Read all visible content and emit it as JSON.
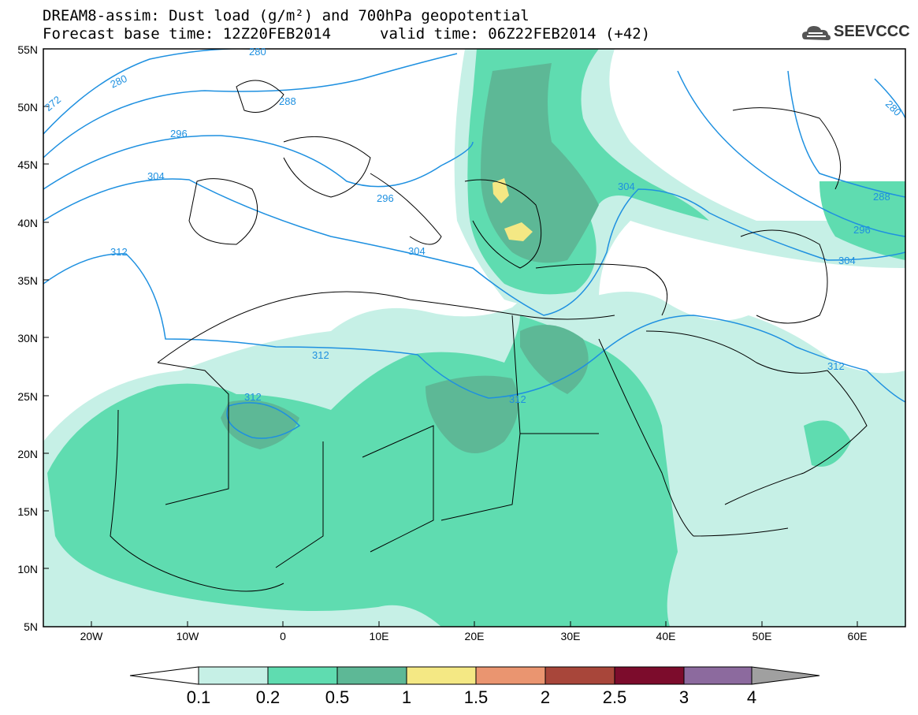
{
  "header": {
    "title_line1": "DREAM8-assim: Dust load (g/m²) and 700hPa geopotential",
    "title_line2": "Forecast base time: 12Z20FEB2014",
    "valid_time": "valid time: 06Z22FEB2014 (+42)",
    "logo_text": "SEEVCCC"
  },
  "axes": {
    "latitudes": [
      "55N",
      "50N",
      "45N",
      "40N",
      "35N",
      "30N",
      "25N",
      "20N",
      "15N",
      "10N",
      "5N"
    ],
    "longitudes": [
      "20W",
      "10W",
      "0",
      "10E",
      "20E",
      "30E",
      "40E",
      "50E",
      "60E"
    ]
  },
  "contour_labels": [
    "280",
    "272",
    "280",
    "288",
    "296",
    "304",
    "296",
    "312",
    "304",
    "312",
    "312",
    "312",
    "304",
    "288",
    "296",
    "304",
    "312",
    "280"
  ],
  "colorbar": {
    "labels": [
      "0.1",
      "0.2",
      "0.5",
      "1",
      "1.5",
      "2",
      "2.5",
      "3",
      "4"
    ],
    "colors": [
      "#c6f0e6",
      "#5fdcb0",
      "#5db896",
      "#f4e884",
      "#ea9570",
      "#a8463a",
      "#7c0c2c",
      "#8c6a9e",
      "#a0a0a0"
    ]
  },
  "colors": {
    "dust_light": "#c6f0e6",
    "dust_medium": "#5fdcb0",
    "dust_dark": "#5db896",
    "dust_yellow": "#f4e884",
    "contour": "#1e90e0"
  }
}
